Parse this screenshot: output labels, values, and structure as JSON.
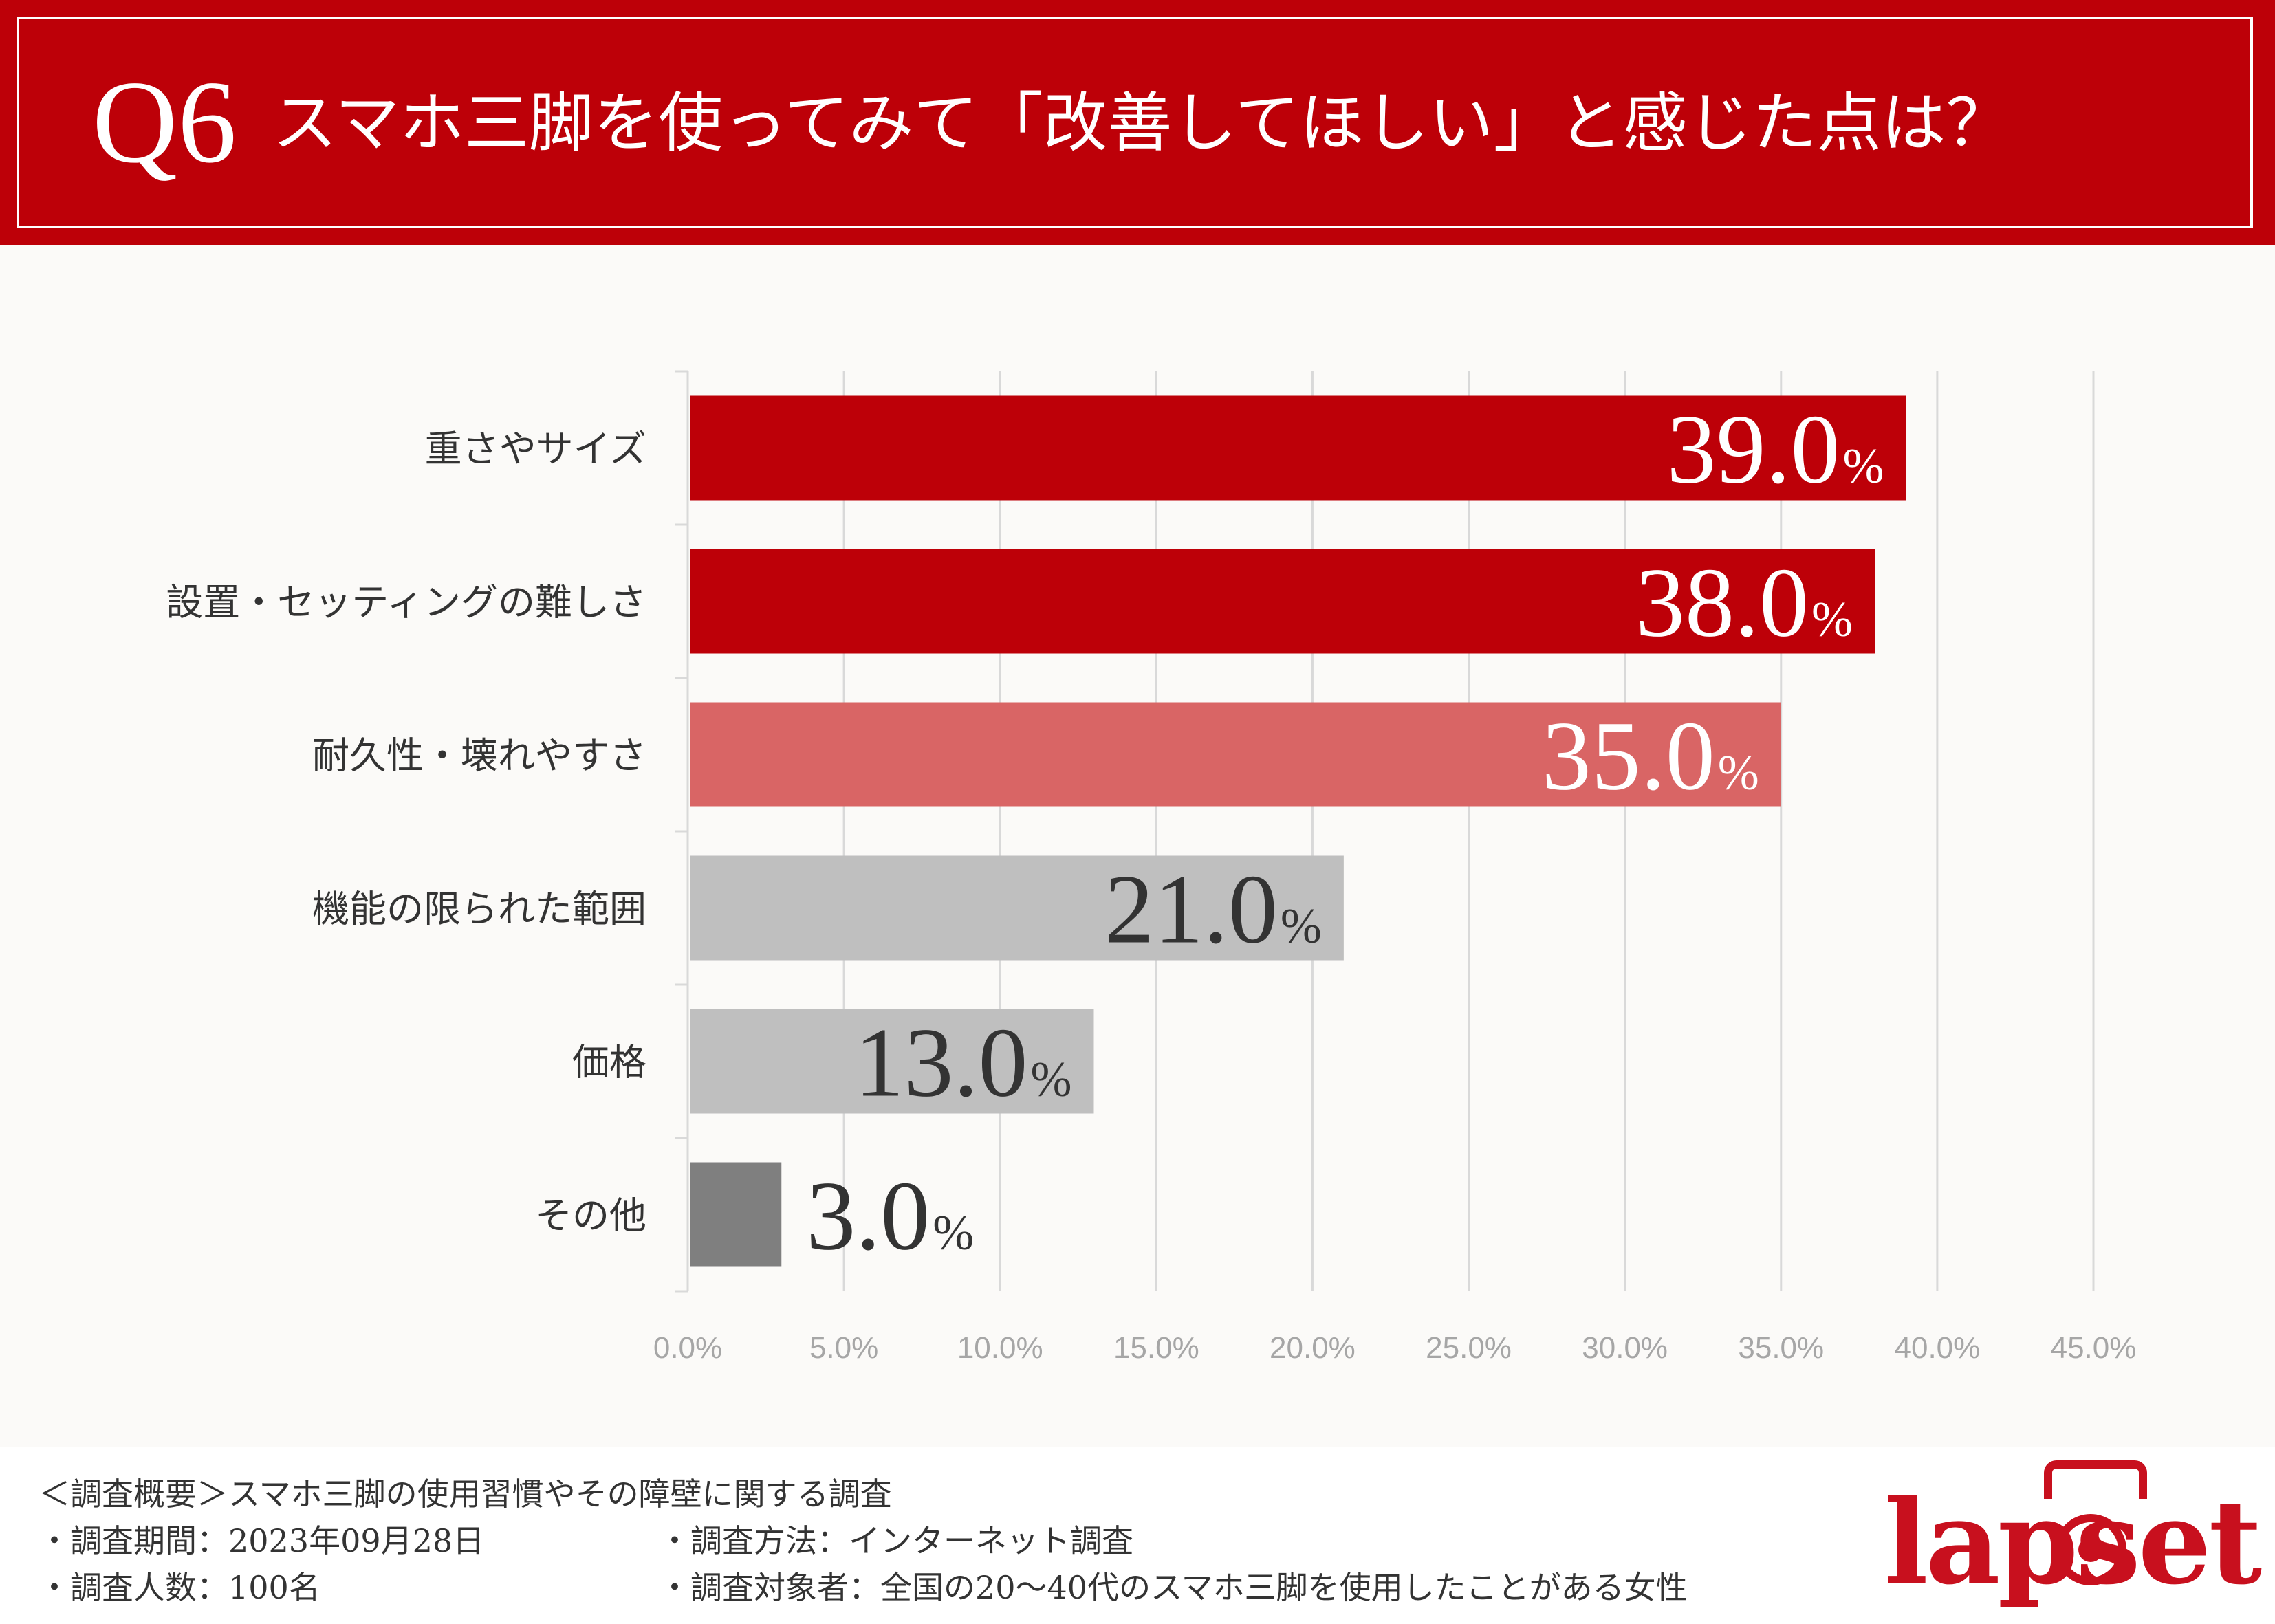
{
  "header": {
    "number": "Q6",
    "question": "スマホ三脚を使ってみて「改善してほしい」と感じた点は？"
  },
  "chart_data": {
    "type": "bar",
    "orientation": "horizontal",
    "title": "スマホ三脚を使ってみて「改善してほしい」と感じた点は？",
    "categories": [
      "重さやサイズ",
      "設置・セッティングの難しさ",
      "耐久性・壊れやすさ",
      "機能の限られた範囲",
      "価格",
      "その他"
    ],
    "values": [
      39.0,
      38.0,
      35.0,
      21.0,
      13.0,
      3.0
    ],
    "value_labels": [
      "39.0",
      "38.0",
      "35.0",
      "21.0",
      "13.0",
      "3.0"
    ],
    "unit": "%",
    "bar_colors": [
      "#bd0008",
      "#bd0008",
      "#d96565",
      "#bfbfbf",
      "#bfbfbf",
      "#7f7f7f"
    ],
    "label_colors": [
      "#ffffff",
      "#ffffff",
      "#ffffff",
      "#333333",
      "#333333",
      "#333333"
    ],
    "label_inside": [
      true,
      true,
      true,
      true,
      true,
      false
    ],
    "xlim": [
      0,
      45
    ],
    "xticks": [
      0,
      5,
      10,
      15,
      20,
      25,
      30,
      35,
      40,
      45
    ],
    "xtick_labels": [
      "0.0%",
      "5.0%",
      "10.0%",
      "15.0%",
      "20.0%",
      "25.0%",
      "30.0%",
      "35.0%",
      "40.0%",
      "45.0%"
    ],
    "grid": true,
    "xlabel": "",
    "ylabel": ""
  },
  "footer": {
    "overview": "＜調査概要＞スマホ三脚の使用習慣やその障壁に関する調査",
    "period": "・調査期間：2023年09月28日",
    "method": "・調査方法：インターネット調査",
    "count": "・調査人数：100名",
    "target": "・調査対象者：全国の20〜40代のスマホ三脚を使用したことがある女性"
  },
  "logo": {
    "text": "lapset",
    "color": "#c8101e"
  },
  "colors": {
    "brand": "#bd0008",
    "background": "#fbfaf8"
  }
}
